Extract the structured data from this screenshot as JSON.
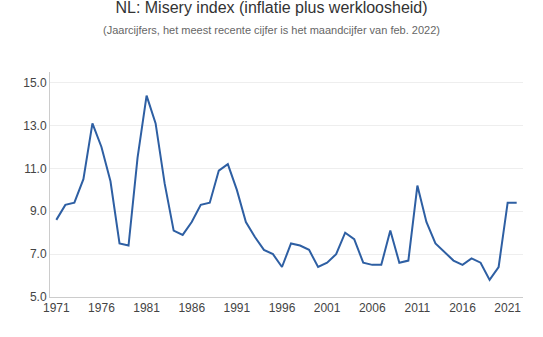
{
  "chart_data": {
    "type": "line",
    "title": "NL: Misery index (inflatie plus werkloosheid)",
    "subtitle": "(Jaarcijfers, het meest recente cijfer is het maandcijfer van feb. 2022)",
    "x": [
      1971,
      1972,
      1973,
      1974,
      1975,
      1976,
      1977,
      1978,
      1979,
      1980,
      1981,
      1982,
      1983,
      1984,
      1985,
      1986,
      1987,
      1988,
      1989,
      1990,
      1991,
      1992,
      1993,
      1994,
      1995,
      1996,
      1997,
      1998,
      1999,
      2000,
      2001,
      2002,
      2003,
      2004,
      2005,
      2006,
      2007,
      2008,
      2009,
      2010,
      2011,
      2012,
      2013,
      2014,
      2015,
      2016,
      2017,
      2018,
      2019,
      2020,
      2021,
      2022
    ],
    "values": [
      8.6,
      9.3,
      9.4,
      10.5,
      13.1,
      12.0,
      10.4,
      7.5,
      7.4,
      11.5,
      14.4,
      13.1,
      10.3,
      8.1,
      7.9,
      8.5,
      9.3,
      9.4,
      10.9,
      11.2,
      10.0,
      8.5,
      7.8,
      7.2,
      7.0,
      6.4,
      7.5,
      7.4,
      7.2,
      6.4,
      6.6,
      7.0,
      8.0,
      7.7,
      6.6,
      6.5,
      6.5,
      8.1,
      6.6,
      6.7,
      10.2,
      8.5,
      7.5,
      7.1,
      6.7,
      6.5,
      6.8,
      6.6,
      5.8,
      6.4,
      9.4,
      9.4
    ],
    "color": "#2e5fa3",
    "xlim": [
      1970.3,
      2022.7
    ],
    "xticks": [
      1971,
      1976,
      1981,
      1986,
      1991,
      1996,
      2001,
      2006,
      2011,
      2016,
      2021
    ],
    "ylim": [
      5.0,
      15.5
    ],
    "yticks": [
      {
        "value": 5.0,
        "label": "5.0"
      },
      {
        "value": 7.0,
        "label": "7.0"
      },
      {
        "value": 9.0,
        "label": "9.0"
      },
      {
        "value": 11.0,
        "label": "11.0"
      },
      {
        "value": 13.0,
        "label": "13.0"
      },
      {
        "value": 15.0,
        "label": "15.0"
      }
    ],
    "grid": "y"
  }
}
